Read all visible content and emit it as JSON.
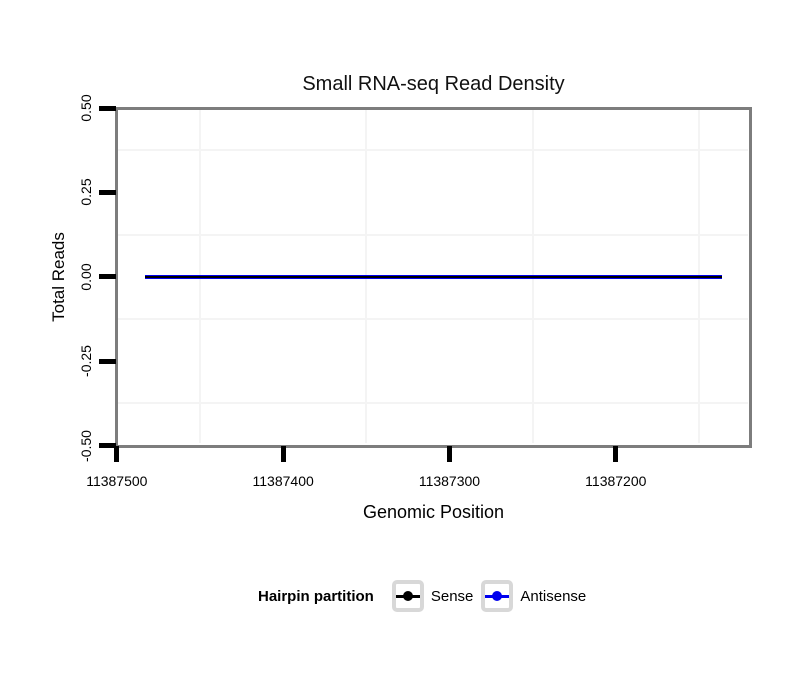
{
  "title": "Small RNA-seq Read Density",
  "chart_data": {
    "type": "line",
    "title": "Small RNA-seq Read Density",
    "xlabel": "Genomic Position",
    "ylabel": "Total Reads",
    "x_reversed": true,
    "x_domain": [
      11387500.5,
      11387119.3
    ],
    "y_domain": [
      0.5,
      -0.5
    ],
    "x_ticks": [
      11387500,
      11387400,
      11387300,
      11387200
    ],
    "x_tick_labels": [
      "11387500",
      "11387400",
      "11387300",
      "11387200"
    ],
    "x_minor_ticks": [
      11387450,
      11387350,
      11387250,
      11387150
    ],
    "y_ticks": [
      0.5,
      0.25,
      0,
      -0.25,
      -0.5
    ],
    "y_tick_labels": [
      "0.50",
      "0.25",
      "0.00",
      "-0.25",
      "-0.50"
    ],
    "y_minor_ticks": [
      0.375,
      0.125,
      -0.125,
      -0.375
    ],
    "grid": "minor-only",
    "series": [
      {
        "name": "Sense",
        "color": "#000000",
        "x": [
          11387483,
          11387136
        ],
        "y": [
          0,
          0
        ]
      },
      {
        "name": "Antisense",
        "color": "#0000ee",
        "x": [
          11387483,
          11387136
        ],
        "y": [
          0,
          0
        ]
      }
    ],
    "legend": {
      "title": "Hairpin partition",
      "position": "bottom",
      "entries": [
        {
          "label": "Sense",
          "color": "#000000"
        },
        {
          "label": "Antisense",
          "color": "#0000ee"
        }
      ]
    }
  },
  "colors": {
    "background": "#ffffff",
    "panel_border": "#7d7d7d",
    "grid_minor": "#f4f4f4",
    "tick": "#000000",
    "legend_key_border": "#d8d8d8",
    "text": "#000000"
  }
}
